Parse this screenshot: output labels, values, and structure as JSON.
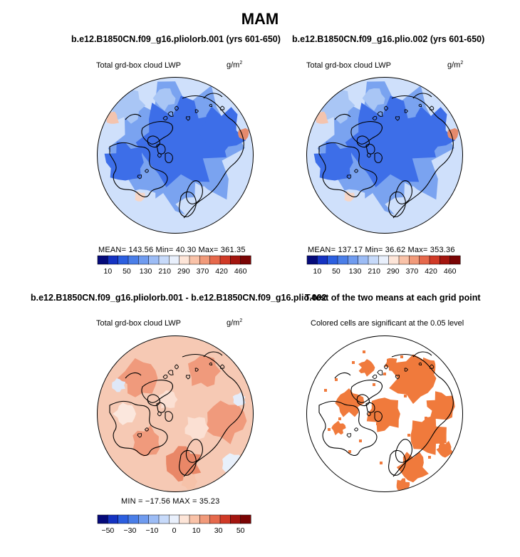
{
  "figure": {
    "season_title": "MAM",
    "colors": {
      "ocean_blue": "#3d6ee8",
      "land_blue": "#7aa3f0",
      "pale_blue": "#cfe0fb",
      "diff_pink": "#f6c9b4",
      "diff_salmon": "#f09a7c",
      "significant": "#f07a3c",
      "coastline": "#000000"
    }
  },
  "panels": [
    {
      "id": "top-left",
      "case_title": "b.e12.B1850CN.f09_g16.pliolorb.001 (yrs 601-650)",
      "variable": "Total grd-box cloud LWP",
      "units_base": "g/m",
      "units_exp": "2",
      "stats_text": "MEAN=  143.56   Min=    40.30   Max=  361.35"
    },
    {
      "id": "top-right",
      "case_title": "b.e12.B1850CN.f09_g16.plio.002 (yrs 601-650)",
      "variable": "Total grd-box cloud LWP",
      "units_base": "g/m",
      "units_exp": "2",
      "stats_text": "MEAN=  137.17   Min=    36.62   Max=  353.36"
    },
    {
      "id": "bottom-left",
      "case_title": "b.e12.B1850CN.f09_g16.pliolorb.001 - b.e12.B1850CN.f09_g16.plio.002",
      "variable": "Total grd-box cloud LWP",
      "units_base": "g/m",
      "units_exp": "2",
      "stats_text": "MIN =  −17.56   MAX =    35.23"
    },
    {
      "id": "bottom-right",
      "case_title": "T-test of the two means at each grid point",
      "variable": "Colored cells are significant at the 0.05 level"
    }
  ],
  "chart_data": [
    {
      "type": "heatmap",
      "projection": "north-polar-stereographic",
      "title": "b.e12.B1850CN.f09_g16.pliolorb.001 (yrs 601-650)",
      "variable": "Total grd-box cloud LWP",
      "units": "g/m2",
      "mean": 143.56,
      "min": 40.3,
      "max": 361.35,
      "colorbar": {
        "labels": [
          "10",
          "50",
          "130",
          "210",
          "290",
          "370",
          "420",
          "460"
        ],
        "colors": [
          "#050a7a",
          "#1533c2",
          "#2c5fe0",
          "#4a7ee8",
          "#6f9bef",
          "#9cbcf5",
          "#c7dafa",
          "#e9f0fc",
          "#fde5d8",
          "#f9c2a8",
          "#f19a7a",
          "#e6694c",
          "#d03a27",
          "#a3150f",
          "#7a0404"
        ]
      }
    },
    {
      "type": "heatmap",
      "projection": "north-polar-stereographic",
      "title": "b.e12.B1850CN.f09_g16.plio.002 (yrs 601-650)",
      "variable": "Total grd-box cloud LWP",
      "units": "g/m2",
      "mean": 137.17,
      "min": 36.62,
      "max": 353.36,
      "colorbar": {
        "labels": [
          "10",
          "50",
          "130",
          "210",
          "290",
          "370",
          "420",
          "460"
        ],
        "colors": [
          "#050a7a",
          "#1533c2",
          "#2c5fe0",
          "#4a7ee8",
          "#6f9bef",
          "#9cbcf5",
          "#c7dafa",
          "#e9f0fc",
          "#fde5d8",
          "#f9c2a8",
          "#f19a7a",
          "#e6694c",
          "#d03a27",
          "#a3150f",
          "#7a0404"
        ]
      }
    },
    {
      "type": "heatmap",
      "projection": "north-polar-stereographic",
      "title": "b.e12.B1850CN.f09_g16.pliolorb.001 - b.e12.B1850CN.f09_g16.plio.002",
      "variable": "Total grd-box cloud LWP",
      "units": "g/m2",
      "min": -17.56,
      "max": 35.23,
      "colorbar": {
        "labels": [
          "−50",
          "−30",
          "−10",
          "0",
          "10",
          "30",
          "50"
        ],
        "colors": [
          "#050a7a",
          "#1533c2",
          "#2c5fe0",
          "#4a7ee8",
          "#6f9bef",
          "#9cbcf5",
          "#c7dafa",
          "#e9f0fc",
          "#fde5d8",
          "#f9c2a8",
          "#f19a7a",
          "#e6694c",
          "#d03a27",
          "#a3150f",
          "#7a0404"
        ]
      }
    },
    {
      "type": "heatmap",
      "projection": "north-polar-stereographic",
      "title": "T-test of the two means at each grid point",
      "variable": "Colored cells are significant at the 0.05 level",
      "significance_level": 0.05
    }
  ]
}
